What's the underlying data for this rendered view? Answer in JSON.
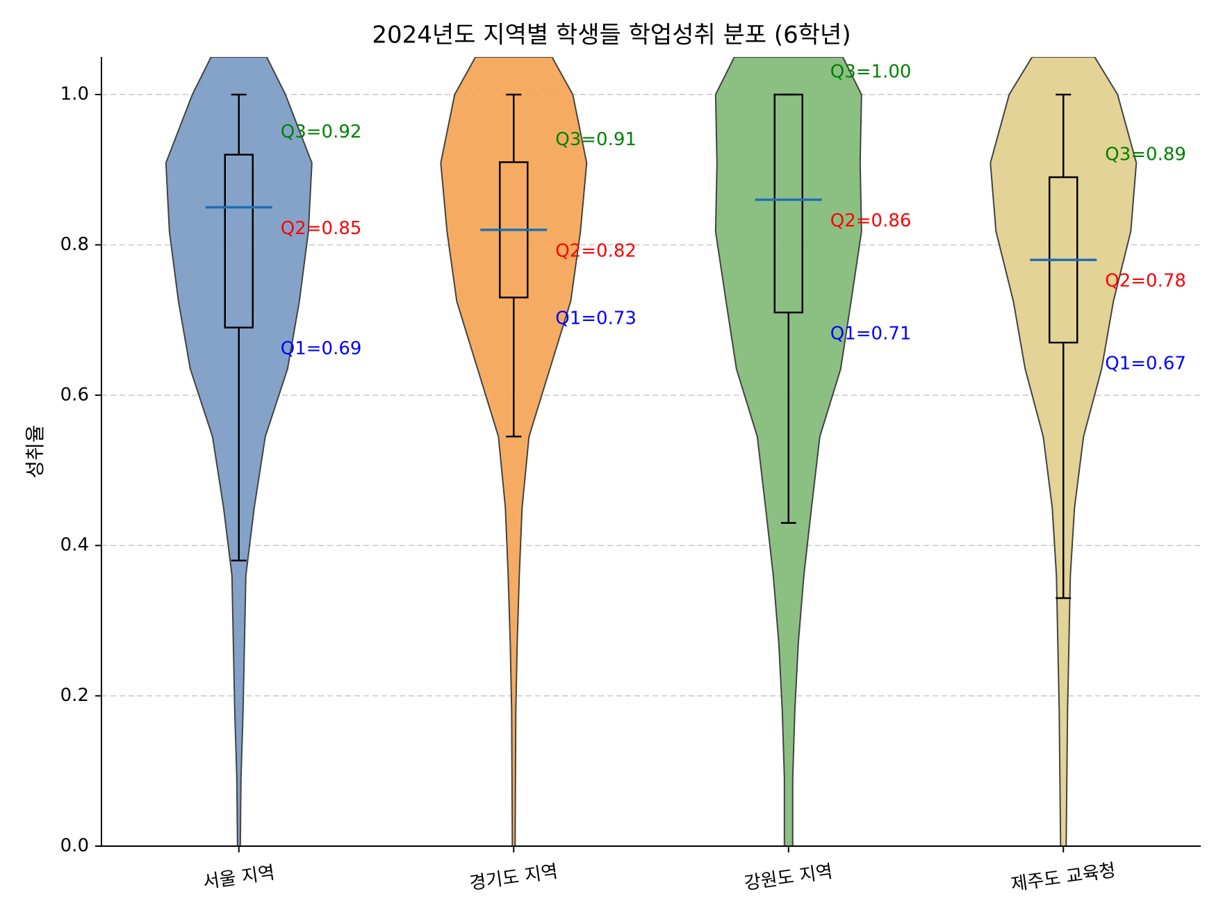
{
  "chart_data": {
    "type": "violin",
    "title": "2024년도 지역별 학생들 학업성취 분포 (6학년)",
    "ylabel": "성취율",
    "xlabel": "",
    "ylim": [
      0.0,
      1.05
    ],
    "yticks": [
      "0.0",
      "0.2",
      "0.4",
      "0.6",
      "0.8",
      "1.0"
    ],
    "grid": "horizontal-dashed",
    "annotation_colors": {
      "q3": "#008000",
      "q2": "#ff0000",
      "q1": "#0000ff"
    },
    "series": [
      {
        "category": "서울 지역",
        "color": "#7b9cc4",
        "q1": 0.69,
        "median": 0.85,
        "q3": 0.92,
        "whisker_low": 0.38,
        "whisker_high": 1.0,
        "annotations": {
          "q3": "Q3=0.92",
          "q2": "Q2=0.85",
          "q1": "Q1=0.69"
        },
        "density": [
          [
            0.0,
            0.02
          ],
          [
            0.09,
            0.03
          ],
          [
            0.18,
            0.06
          ],
          [
            0.27,
            0.08
          ],
          [
            0.36,
            0.1
          ],
          [
            0.45,
            0.22
          ],
          [
            0.545,
            0.38
          ],
          [
            0.635,
            0.7
          ],
          [
            0.725,
            0.87
          ],
          [
            0.818,
            1.0
          ],
          [
            0.909,
            1.05
          ],
          [
            1.0,
            0.67
          ],
          [
            1.05,
            0.4
          ]
        ]
      },
      {
        "category": "경기도 지역",
        "color": "#f5a555",
        "q1": 0.73,
        "median": 0.82,
        "q3": 0.91,
        "whisker_low": 0.545,
        "whisker_high": 1.0,
        "annotations": {
          "q3": "Q3=0.91",
          "q2": "Q2=0.82",
          "q1": "Q1=0.73"
        },
        "density": [
          [
            0.0,
            0.02
          ],
          [
            0.09,
            0.025
          ],
          [
            0.18,
            0.03
          ],
          [
            0.27,
            0.05
          ],
          [
            0.36,
            0.08
          ],
          [
            0.45,
            0.12
          ],
          [
            0.545,
            0.22
          ],
          [
            0.635,
            0.52
          ],
          [
            0.725,
            0.82
          ],
          [
            0.818,
            0.96
          ],
          [
            0.909,
            1.05
          ],
          [
            1.0,
            0.85
          ],
          [
            1.05,
            0.55
          ]
        ]
      },
      {
        "category": "강원도 지역",
        "color": "#82bb78",
        "q1": 0.71,
        "median": 0.86,
        "q3": 1.0,
        "whisker_low": 0.43,
        "whisker_high": 1.0,
        "annotations": {
          "q3": "Q3=1.00",
          "q2": "Q2=0.86",
          "q1": "Q1=0.71"
        },
        "density": [
          [
            0.0,
            0.06
          ],
          [
            0.09,
            0.06
          ],
          [
            0.18,
            0.09
          ],
          [
            0.27,
            0.14
          ],
          [
            0.36,
            0.22
          ],
          [
            0.45,
            0.33
          ],
          [
            0.545,
            0.45
          ],
          [
            0.635,
            0.75
          ],
          [
            0.725,
            0.9
          ],
          [
            0.818,
            1.05
          ],
          [
            0.909,
            1.03
          ],
          [
            1.0,
            1.05
          ],
          [
            1.05,
            0.78
          ]
        ]
      },
      {
        "category": "제주도 교육청",
        "color": "#e2d08e",
        "q1": 0.67,
        "median": 0.78,
        "q3": 0.89,
        "whisker_low": 0.33,
        "whisker_high": 1.0,
        "annotations": {
          "q3": "Q3=0.89",
          "q2": "Q2=0.78",
          "q1": "Q1=0.67"
        },
        "density": [
          [
            0.0,
            0.04
          ],
          [
            0.09,
            0.05
          ],
          [
            0.18,
            0.06
          ],
          [
            0.27,
            0.08
          ],
          [
            0.36,
            0.1
          ],
          [
            0.45,
            0.16
          ],
          [
            0.545,
            0.29
          ],
          [
            0.635,
            0.55
          ],
          [
            0.725,
            0.72
          ],
          [
            0.818,
            0.97
          ],
          [
            0.909,
            1.05
          ],
          [
            1.0,
            0.78
          ],
          [
            1.05,
            0.45
          ]
        ]
      }
    ]
  }
}
